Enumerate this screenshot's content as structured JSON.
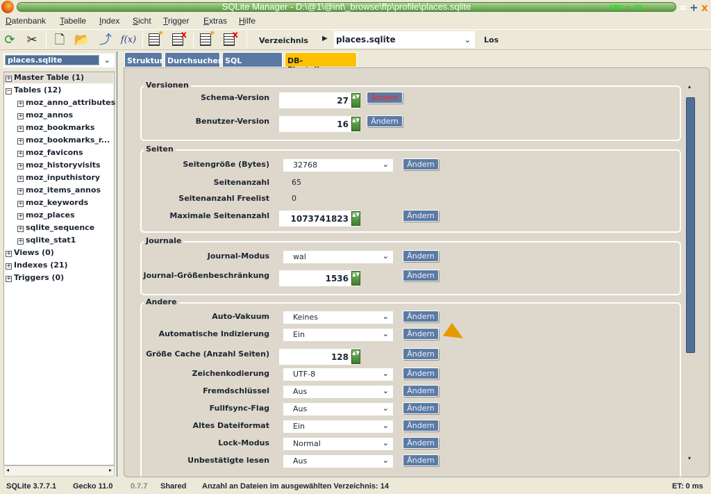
{
  "window": {
    "title": "SQLite Manager - D:\\@1\\@int\\_browse\\ffp\\profile\\places.sqlite",
    "overlay_cpu": "CPU      = 2%",
    "min": "=",
    "max": "+",
    "close": "x"
  },
  "menu": [
    "Datenbank",
    "Tabelle",
    "Index",
    "Sicht",
    "Trigger",
    "Extras",
    "Hilfe"
  ],
  "toolbar": {
    "icons": [
      "refresh-icon",
      "settings-tools-icon",
      "new-database-icon",
      "open-database-icon",
      "export-icon",
      "function-icon",
      "create-table-icon",
      "drop-table-icon",
      "create-index-icon",
      "drop-index-icon"
    ],
    "function_label": "f(x)",
    "directory_label": "Verzeichnis",
    "directory_value": "places.sqlite",
    "go_label": "Los"
  },
  "sidebar": {
    "db_select": "places.sqlite",
    "tree": [
      {
        "label": "Master Table (1)",
        "sign": "+",
        "level": 0
      },
      {
        "label": "Tables (12)",
        "sign": "−",
        "level": 0
      },
      {
        "label": "moz_anno_attributes",
        "sign": "+",
        "level": 1
      },
      {
        "label": "moz_annos",
        "sign": "+",
        "level": 1
      },
      {
        "label": "moz_bookmarks",
        "sign": "+",
        "level": 1
      },
      {
        "label": "moz_bookmarks_r...",
        "sign": "+",
        "level": 1
      },
      {
        "label": "moz_favicons",
        "sign": "+",
        "level": 1
      },
      {
        "label": "moz_historyvisits",
        "sign": "+",
        "level": 1
      },
      {
        "label": "moz_inputhistory",
        "sign": "+",
        "level": 1
      },
      {
        "label": "moz_items_annos",
        "sign": "+",
        "level": 1
      },
      {
        "label": "moz_keywords",
        "sign": "+",
        "level": 1
      },
      {
        "label": "moz_places",
        "sign": "+",
        "level": 1
      },
      {
        "label": "sqlite_sequence",
        "sign": "+",
        "level": 1
      },
      {
        "label": "sqlite_stat1",
        "sign": "+",
        "level": 1
      },
      {
        "label": "Views (0)",
        "sign": "+",
        "level": 0
      },
      {
        "label": "Indexes (21)",
        "sign": "+",
        "level": 0
      },
      {
        "label": "Triggers (0)",
        "sign": "+",
        "level": 0
      }
    ]
  },
  "tabs": [
    {
      "label": "Struktur"
    },
    {
      "label": "Durchsuchen"
    },
    {
      "label": "SQL ausführen"
    },
    {
      "label": "DB-Einstellungen",
      "active": true
    }
  ],
  "button_label": "Ändern",
  "groups": [
    {
      "title": "Versionen",
      "rows": [
        {
          "label": "Schema-Version",
          "type": "number",
          "value": "27",
          "button_highlight": true
        },
        {
          "label": "Benutzer-Version",
          "type": "number",
          "value": "16"
        }
      ]
    },
    {
      "title": "Seiten",
      "rows": [
        {
          "label": "Seitengröße (Bytes)",
          "type": "select",
          "value": "32768"
        },
        {
          "label": "Seitenanzahl",
          "type": "text",
          "value": "65"
        },
        {
          "label": "Seitenanzahl Freelist",
          "type": "text",
          "value": "0"
        },
        {
          "label": "Maximale Seitenanzahl",
          "type": "number",
          "value": "1073741823"
        }
      ]
    },
    {
      "title": "Journale",
      "rows": [
        {
          "label": "Journal-Modus",
          "type": "select",
          "value": "wal"
        },
        {
          "label": "Journal-Größenbeschränkung",
          "type": "number",
          "value": "1536"
        }
      ]
    },
    {
      "title": "Andere",
      "rows": [
        {
          "label": "Auto-Vakuum",
          "type": "select",
          "value": "Keines"
        },
        {
          "label": "Automatische Indizierung",
          "type": "select",
          "value": "Ein"
        },
        {
          "label": "Größe Cache (Anzahl Seiten)",
          "type": "number",
          "value": "128"
        },
        {
          "label": "Zeichenkodierung",
          "type": "select",
          "value": "UTF-8"
        },
        {
          "label": "Fremdschlüssel",
          "type": "select",
          "value": "Aus"
        },
        {
          "label": "Fullfsync-Flag",
          "type": "select",
          "value": "Aus"
        },
        {
          "label": "Altes Dateiformat",
          "type": "select",
          "value": "Ein"
        },
        {
          "label": "Lock-Modus",
          "type": "select",
          "value": "Normal"
        },
        {
          "label": "Unbestätigte lesen",
          "type": "select",
          "value": "Aus"
        }
      ]
    }
  ],
  "status": {
    "sqlite": "SQLite 3.7.7.1",
    "gecko": "Gecko 11.0",
    "version": "0.7.7",
    "mode": "Shared",
    "files": "Anzahl an Dateien im ausgewählten Verzeichnis: 14",
    "et": "ET: 0 ms"
  },
  "colors": {
    "tab_active": "#ffc000",
    "tab": "#5a7aa3",
    "button": "#5b7ba3",
    "title_green": "#5c9a44"
  }
}
